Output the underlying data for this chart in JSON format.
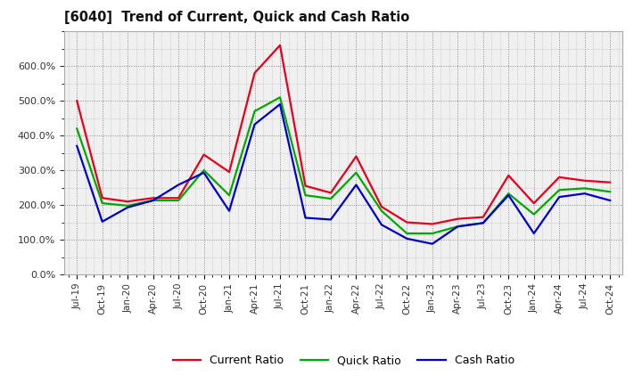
{
  "title": "[6040]  Trend of Current, Quick and Cash Ratio",
  "x_labels": [
    "Jul-19",
    "Oct-19",
    "Jan-20",
    "Apr-20",
    "Jul-20",
    "Oct-20",
    "Jan-21",
    "Apr-21",
    "Jul-21",
    "Oct-21",
    "Jan-22",
    "Apr-22",
    "Jul-22",
    "Oct-22",
    "Jan-23",
    "Apr-23",
    "Jul-23",
    "Oct-23",
    "Jan-24",
    "Apr-24",
    "Jul-24",
    "Oct-24"
  ],
  "current_ratio": [
    500,
    220,
    210,
    220,
    220,
    345,
    295,
    580,
    660,
    255,
    235,
    340,
    195,
    150,
    145,
    160,
    165,
    285,
    205,
    280,
    270,
    265
  ],
  "quick_ratio": [
    420,
    205,
    198,
    213,
    213,
    300,
    228,
    470,
    510,
    228,
    218,
    293,
    183,
    118,
    118,
    138,
    148,
    233,
    173,
    243,
    248,
    238
  ],
  "cash_ratio": [
    370,
    152,
    193,
    213,
    258,
    293,
    183,
    432,
    490,
    163,
    158,
    258,
    143,
    103,
    88,
    138,
    148,
    228,
    118,
    223,
    233,
    213
  ],
  "current_color": "#e8001c",
  "quick_color": "#00aa00",
  "cash_color": "#0000cc",
  "background_color": "#ffffff",
  "plot_bg_color": "#f0f0f0",
  "grid_color": "#888888",
  "ylim": [
    0,
    700
  ],
  "yticks": [
    0,
    100,
    200,
    300,
    400,
    500,
    600
  ],
  "legend_labels": [
    "Current Ratio",
    "Quick Ratio",
    "Cash Ratio"
  ],
  "linewidth": 1.6
}
